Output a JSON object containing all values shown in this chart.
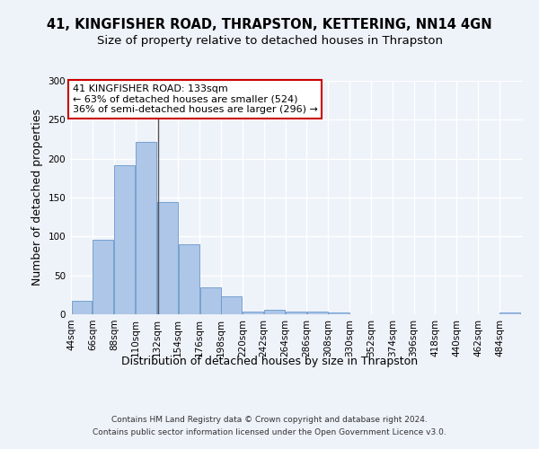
{
  "title1": "41, KINGFISHER ROAD, THRAPSTON, KETTERING, NN14 4GN",
  "title2": "Size of property relative to detached houses in Thrapston",
  "xlabel": "Distribution of detached houses by size in Thrapston",
  "ylabel": "Number of detached properties",
  "footer1": "Contains HM Land Registry data © Crown copyright and database right 2024.",
  "footer2": "Contains public sector information licensed under the Open Government Licence v3.0.",
  "annotation_line1": "41 KINGFISHER ROAD: 133sqm",
  "annotation_line2": "← 63% of detached houses are smaller (524)",
  "annotation_line3": "36% of semi-detached houses are larger (296) →",
  "property_size": 133,
  "bar_values": [
    17,
    96,
    191,
    222,
    144,
    90,
    35,
    23,
    4,
    6,
    4,
    3,
    2,
    0,
    0,
    0,
    0,
    0,
    0,
    0,
    2
  ],
  "bin_starts": [
    44,
    66,
    88,
    110,
    132,
    154,
    176,
    198,
    220,
    242,
    264,
    286,
    308,
    330,
    352,
    374,
    396,
    418,
    440,
    462,
    484
  ],
  "bin_width": 22,
  "bar_color": "#aec6e8",
  "bar_edgecolor": "#6699cc",
  "vline_x": 133,
  "vline_color": "#555555",
  "annotation_box_color": "#cc0000",
  "ylim": [
    0,
    300
  ],
  "yticks": [
    0,
    50,
    100,
    150,
    200,
    250,
    300
  ],
  "background_color": "#eef2f9",
  "grid_color": "#ffffff",
  "title1_fontsize": 10.5,
  "title2_fontsize": 9.5,
  "ylabel_fontsize": 9,
  "xlabel_fontsize": 9,
  "tick_fontsize": 7.5,
  "annotation_fontsize": 8,
  "footer_fontsize": 6.5
}
